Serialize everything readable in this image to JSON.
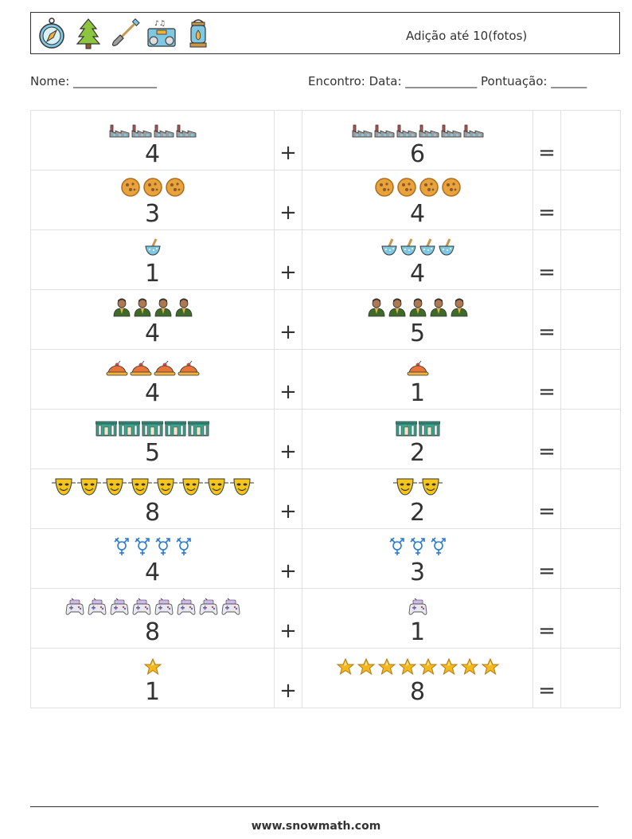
{
  "header": {
    "title": "Adição até 10(fotos)",
    "icons": [
      "compass-icon",
      "pine-tree-icon",
      "shovel-icon",
      "boombox-icon",
      "lantern-icon"
    ]
  },
  "info": {
    "name_label": "Nome: ______________",
    "meta_label": "Encontro: Data: ____________  Pontuação: ______"
  },
  "operators": {
    "plus": "+",
    "equals": "="
  },
  "problems": [
    {
      "a": 4,
      "a_text": "4",
      "b": 6,
      "b_text": "6",
      "icon": "factory"
    },
    {
      "a": 3,
      "a_text": "3",
      "b": 4,
      "b_text": "4",
      "icon": "cookie"
    },
    {
      "a": 1,
      "a_text": "1",
      "b": 4,
      "b_text": "4",
      "icon": "mortar"
    },
    {
      "a": 4,
      "a_text": "4",
      "b": 5,
      "b_text": "5",
      "icon": "person"
    },
    {
      "a": 4,
      "a_text": "4",
      "b": 1,
      "b_text": "1",
      "icon": "pie"
    },
    {
      "a": 5,
      "a_text": "5",
      "b": 2,
      "b_text": "2",
      "icon": "building"
    },
    {
      "a": 8,
      "a_text": "8",
      "b": 2,
      "b_text": "2",
      "icon": "mask"
    },
    {
      "a": 4,
      "a_text": "4",
      "b": 3,
      "b_text": "3",
      "icon": "gender"
    },
    {
      "a": 8,
      "a_text": "8",
      "b": 1,
      "b_text": "1",
      "icon": "gamepad"
    },
    {
      "a": 1,
      "a_text": "1",
      "b": 8,
      "b_text": "8",
      "icon": "star"
    }
  ],
  "footer": {
    "url": "www.snowmath.com"
  }
}
